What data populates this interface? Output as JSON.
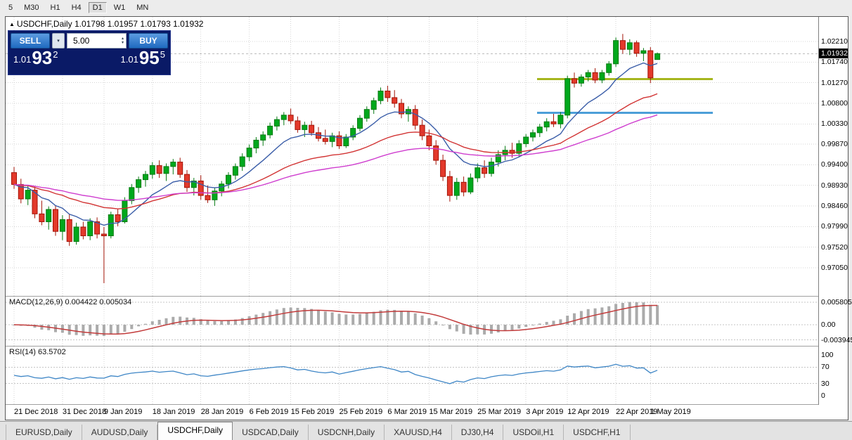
{
  "toolbar": {
    "timeframes": [
      {
        "label": "5",
        "active": false
      },
      {
        "label": "M30",
        "active": false
      },
      {
        "label": "H1",
        "active": false
      },
      {
        "label": "H4",
        "active": false
      },
      {
        "label": "D1",
        "active": true
      },
      {
        "label": "W1",
        "active": false
      },
      {
        "label": "MN",
        "active": false
      }
    ]
  },
  "chart": {
    "symbol_title": "USDCHF,Daily",
    "ohlc_text": "1.01798 1.01957 1.01793 1.01932"
  },
  "trade_panel": {
    "sell_label": "SELL",
    "buy_label": "BUY",
    "volume": "5.00",
    "sell_price": {
      "base": "1.01",
      "big": "93",
      "sup": "2"
    },
    "buy_price": {
      "base": "1.01",
      "big": "95",
      "sup": "5"
    }
  },
  "colors": {
    "candle_up": "#00a81c",
    "candle_up_border": "#067a12",
    "candle_down": "#e3392b",
    "candle_down_border": "#a31408",
    "ma_fast": "#3a5da8",
    "ma_mid": "#d23434",
    "ma_slow": "#cf3ecf",
    "resistance": "#a6b61e",
    "support": "#4c9fd8",
    "macd_hist": "#ababab",
    "macd_signal": "#c23b3b",
    "rsi": "#3e86c6",
    "grid": "#d6d6d6",
    "level": "#c4c4c4",
    "price_tag_bg": "#000000",
    "price_tag_fg": "#ffffff",
    "panel_bg": "#0a1a66",
    "button_blue": "#2a7bd2"
  },
  "chart_data": {
    "type": "candlestick",
    "symbol": "USDCHF",
    "timeframe": "Daily",
    "current_price": 1.01932,
    "current_price_label": "1.01932",
    "price_range": {
      "top": 1.0277,
      "bottom": 0.9641
    },
    "grid": [
      {
        "t": "1.02210",
        "v": 1.0221
      },
      {
        "t": "1.01740",
        "v": 1.0174
      },
      {
        "t": "1.01270",
        "v": 1.0127
      },
      {
        "t": "1.00800",
        "v": 1.008
      },
      {
        "t": "1.00330",
        "v": 1.0033
      },
      {
        "t": "0.99870",
        "v": 0.9987
      },
      {
        "t": "0.99400",
        "v": 0.994
      },
      {
        "t": "0.98930",
        "v": 0.9893
      },
      {
        "t": "0.98460",
        "v": 0.9846
      },
      {
        "t": "0.97990",
        "v": 0.9799
      },
      {
        "t": "0.97520",
        "v": 0.9752
      },
      {
        "t": "0.97050",
        "v": 0.9705
      }
    ],
    "hlines": [
      {
        "name": "resistance-line",
        "price": 1.0135,
        "color": "#a6b61e",
        "i1": 76,
        "i2": 101
      },
      {
        "name": "support-line",
        "price": 1.0058,
        "color": "#4c9fd8",
        "i1": 76,
        "i2": 101
      }
    ],
    "ma_lines": [
      {
        "period": 10,
        "color": "#3a5da8"
      },
      {
        "period": 30,
        "color": "#d23434"
      },
      {
        "period": 55,
        "color": "#cf3ecf"
      }
    ],
    "indicators": {
      "macd": {
        "label": "MACD(12,26,9) 0.004422 0.005034",
        "fast": 12,
        "slow": 26,
        "signal": 9,
        "axis": [
          {
            "t": "0.005805",
            "v": 0.005805
          },
          {
            "t": "0.00",
            "v": 0
          },
          {
            "t": "-0.003945",
            "v": -0.003945
          }
        ]
      },
      "rsi": {
        "label": "RSI(14) 63.5702",
        "period": 14,
        "levels": [
          70,
          30
        ],
        "axis": [
          {
            "t": "100",
            "v": 100
          },
          {
            "t": "70",
            "v": 70
          },
          {
            "t": "30",
            "v": 30
          },
          {
            "t": "0",
            "v": 0
          }
        ]
      }
    },
    "date_ticks": [
      {
        "label": "21 Dec 2018",
        "i": 0
      },
      {
        "label": "31 Dec 2018",
        "i": 7
      },
      {
        "label": "9 Jan 2019",
        "i": 13
      },
      {
        "label": "18 Jan 2019",
        "i": 20
      },
      {
        "label": "28 Jan 2019",
        "i": 27
      },
      {
        "label": "6 Feb 2019",
        "i": 34
      },
      {
        "label": "15 Feb 2019",
        "i": 40
      },
      {
        "label": "25 Feb 2019",
        "i": 47
      },
      {
        "label": "6 Mar 2019",
        "i": 54
      },
      {
        "label": "15 Mar 2019",
        "i": 60
      },
      {
        "label": "25 Mar 2019",
        "i": 67
      },
      {
        "label": "3 Apr 2019",
        "i": 74
      },
      {
        "label": "12 Apr 2019",
        "i": 80
      },
      {
        "label": "22 Apr 2019",
        "i": 87
      },
      {
        "label": "1 May 2019",
        "i": 92
      }
    ],
    "candles": [
      [
        0.9922,
        0.9935,
        0.9885,
        0.9895
      ],
      [
        0.9895,
        0.9908,
        0.9852,
        0.9862
      ],
      [
        0.9862,
        0.9892,
        0.9848,
        0.9882
      ],
      [
        0.9882,
        0.989,
        0.9818,
        0.9828
      ],
      [
        0.9828,
        0.9858,
        0.9802,
        0.981
      ],
      [
        0.981,
        0.9845,
        0.9792,
        0.9838
      ],
      [
        0.9838,
        0.9846,
        0.9778,
        0.9788
      ],
      [
        0.9788,
        0.9825,
        0.9768,
        0.9815
      ],
      [
        0.9815,
        0.9828,
        0.9755,
        0.9765
      ],
      [
        0.9765,
        0.9808,
        0.9758,
        0.9798
      ],
      [
        0.9798,
        0.981,
        0.977,
        0.9778
      ],
      [
        0.9778,
        0.9818,
        0.9768,
        0.981
      ],
      [
        0.981,
        0.982,
        0.9772,
        0.9782
      ],
      [
        0.9782,
        0.9798,
        0.967,
        0.9778
      ],
      [
        0.9778,
        0.9833,
        0.9772,
        0.9826
      ],
      [
        0.9826,
        0.984,
        0.98,
        0.981
      ],
      [
        0.981,
        0.9866,
        0.9806,
        0.9858
      ],
      [
        0.9858,
        0.9896,
        0.985,
        0.9888
      ],
      [
        0.9888,
        0.9913,
        0.9876,
        0.9906
      ],
      [
        0.9906,
        0.9926,
        0.989,
        0.9918
      ],
      [
        0.9918,
        0.9946,
        0.9908,
        0.9938
      ],
      [
        0.9938,
        0.995,
        0.991,
        0.992
      ],
      [
        0.992,
        0.9943,
        0.9903,
        0.9936
      ],
      [
        0.9936,
        0.9953,
        0.9918,
        0.9946
      ],
      [
        0.9946,
        0.9956,
        0.991,
        0.9918
      ],
      [
        0.9918,
        0.9928,
        0.9878,
        0.9888
      ],
      [
        0.9888,
        0.991,
        0.987,
        0.9903
      ],
      [
        0.9903,
        0.9916,
        0.986,
        0.987
      ],
      [
        0.987,
        0.9893,
        0.9853,
        0.986
      ],
      [
        0.986,
        0.9888,
        0.9846,
        0.988
      ],
      [
        0.988,
        0.9903,
        0.9868,
        0.9896
      ],
      [
        0.9896,
        0.9923,
        0.9886,
        0.9916
      ],
      [
        0.9916,
        0.9943,
        0.9906,
        0.9936
      ],
      [
        0.9936,
        0.9966,
        0.9926,
        0.9958
      ],
      [
        0.9958,
        0.9986,
        0.9948,
        0.9978
      ],
      [
        0.9978,
        1.0003,
        0.9966,
        0.9996
      ],
      [
        0.9996,
        1.0016,
        0.9983,
        1.0008
      ],
      [
        1.0008,
        1.0036,
        1.0,
        1.0028
      ],
      [
        1.0028,
        1.005,
        1.0018,
        1.0043
      ],
      [
        1.0043,
        1.006,
        1.003,
        1.0053
      ],
      [
        1.0053,
        1.0068,
        1.0033,
        1.004
      ],
      [
        1.004,
        1.005,
        1.0013,
        1.002
      ],
      [
        1.002,
        1.0038,
        1.0003,
        1.003
      ],
      [
        1.003,
        1.004,
        1.0006,
        1.0013
      ],
      [
        1.0013,
        1.0026,
        0.9993,
        1.0
      ],
      [
        1.0,
        1.002,
        0.9986,
        0.9993
      ],
      [
        0.9993,
        1.0013,
        0.998,
        1.0006
      ],
      [
        1.0006,
        1.0016,
        0.9976,
        0.9983
      ],
      [
        0.9983,
        1.001,
        0.9978,
        1.0003
      ],
      [
        1.0003,
        1.003,
        0.9996,
        1.0023
      ],
      [
        1.0023,
        1.0053,
        1.0016,
        1.0046
      ],
      [
        1.0046,
        1.0073,
        1.0038,
        1.0066
      ],
      [
        1.0066,
        1.0093,
        1.0056,
        1.0086
      ],
      [
        1.0086,
        1.0116,
        1.0078,
        1.0108
      ],
      [
        1.0108,
        1.012,
        1.0083,
        1.0093
      ],
      [
        1.0093,
        1.011,
        1.007,
        1.008
      ],
      [
        1.008,
        1.009,
        1.0046,
        1.0056
      ],
      [
        1.0056,
        1.0073,
        1.0038,
        1.0066
      ],
      [
        1.0066,
        1.0076,
        1.002,
        1.003
      ],
      [
        1.003,
        1.0043,
        0.9996,
        1.0006
      ],
      [
        1.0006,
        1.002,
        0.9973,
        0.9983
      ],
      [
        0.9983,
        0.9996,
        0.994,
        0.995
      ],
      [
        0.995,
        0.9963,
        0.9903,
        0.9913
      ],
      [
        0.9913,
        0.9926,
        0.9856,
        0.987
      ],
      [
        0.987,
        0.991,
        0.986,
        0.99
      ],
      [
        0.99,
        0.9913,
        0.9868,
        0.9878
      ],
      [
        0.9878,
        0.992,
        0.9873,
        0.991
      ],
      [
        0.991,
        0.9943,
        0.99,
        0.9933
      ],
      [
        0.9933,
        0.995,
        0.991,
        0.992
      ],
      [
        0.992,
        0.9956,
        0.9913,
        0.9946
      ],
      [
        0.9946,
        0.9973,
        0.9936,
        0.9963
      ],
      [
        0.9963,
        0.9983,
        0.995,
        0.9973
      ],
      [
        0.9973,
        0.999,
        0.9956,
        0.9966
      ],
      [
        0.9966,
        0.9996,
        0.9958,
        0.9988
      ],
      [
        0.9988,
        1.001,
        0.998,
        1.0003
      ],
      [
        1.0003,
        1.002,
        0.9993,
        1.0013
      ],
      [
        1.0013,
        1.0033,
        1.0003,
        1.0026
      ],
      [
        1.0026,
        1.0046,
        1.0016,
        1.0038
      ],
      [
        1.0038,
        1.0056,
        1.0026,
        1.0033
      ],
      [
        1.0033,
        1.006,
        1.0023,
        1.0053
      ],
      [
        1.0053,
        1.0143,
        1.0046,
        1.0136
      ],
      [
        1.0136,
        1.015,
        1.0116,
        1.0126
      ],
      [
        1.0126,
        1.0146,
        1.0118,
        1.014
      ],
      [
        1.014,
        1.0156,
        1.013,
        1.015
      ],
      [
        1.015,
        1.016,
        1.0126,
        1.0133
      ],
      [
        1.0133,
        1.0156,
        1.0126,
        1.015
      ],
      [
        1.015,
        1.0176,
        1.0143,
        1.017
      ],
      [
        1.017,
        1.023,
        1.0163,
        1.0223
      ],
      [
        1.0223,
        1.0238,
        1.0193,
        1.0203
      ],
      [
        1.0203,
        1.0226,
        1.019,
        1.0218
      ],
      [
        1.0218,
        1.0223,
        1.0186,
        1.0194
      ],
      [
        1.0194,
        1.0206,
        1.0176,
        1.02
      ],
      [
        1.02,
        1.0208,
        1.0126,
        1.0138
      ],
      [
        1.01798,
        1.01957,
        1.01793,
        1.01932
      ]
    ]
  },
  "tabs": [
    {
      "label": "EURUSD,Daily",
      "active": false
    },
    {
      "label": "AUDUSD,Daily",
      "active": false
    },
    {
      "label": "USDCHF,Daily",
      "active": true
    },
    {
      "label": "USDCAD,Daily",
      "active": false
    },
    {
      "label": "USDCNH,Daily",
      "active": false
    },
    {
      "label": "XAUUSD,H4",
      "active": false
    },
    {
      "label": "DJ30,H4",
      "active": false
    },
    {
      "label": "USDOil,H1",
      "active": false
    },
    {
      "label": "USDCHF,H1",
      "active": false
    }
  ]
}
